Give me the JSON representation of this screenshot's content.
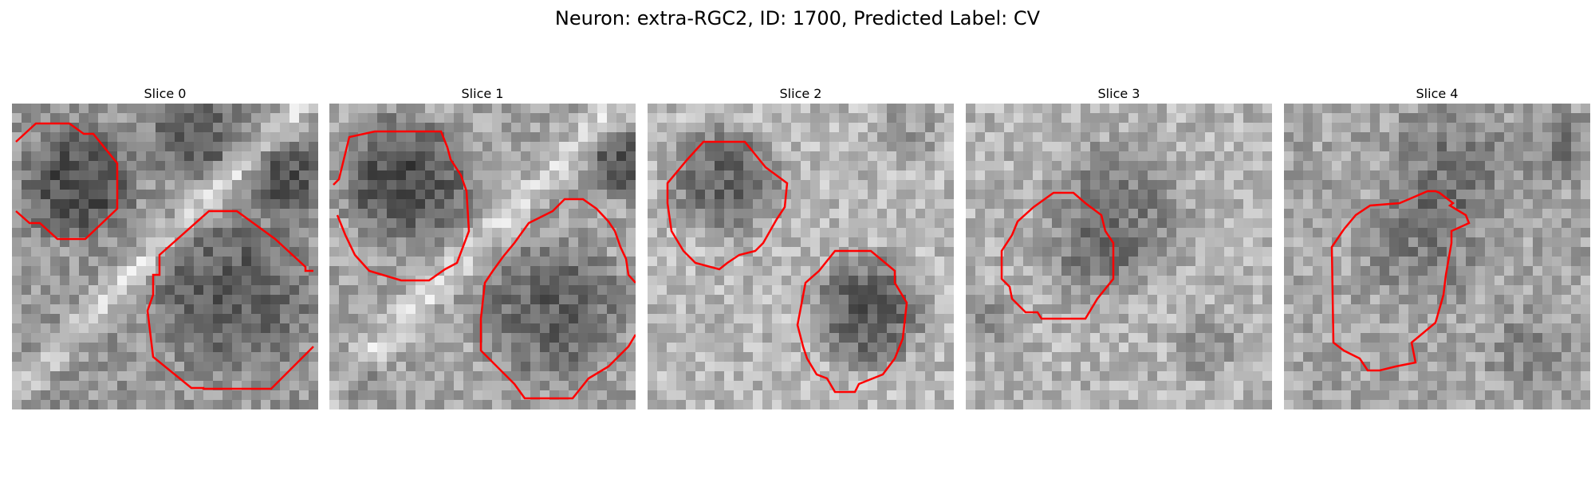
{
  "figure": {
    "title": "Neuron: extra-RGC2, ID: 1700, Predicted Label: CV",
    "contour_color": "#ff0000"
  },
  "slices": [
    {
      "title": "Slice 0",
      "seed": 11,
      "base": 150,
      "blobs": [
        [
          0.22,
          0.26,
          0.22,
          80
        ],
        [
          0.72,
          0.62,
          0.3,
          60
        ],
        [
          0.6,
          0.1,
          0.18,
          55
        ],
        [
          0.9,
          0.25,
          0.15,
          70
        ]
      ],
      "ridge": 70
    },
    {
      "title": "Slice 1",
      "seed": 29,
      "base": 165,
      "blobs": [
        [
          0.25,
          0.25,
          0.25,
          95
        ],
        [
          0.73,
          0.68,
          0.28,
          70
        ],
        [
          0.95,
          0.2,
          0.14,
          75
        ],
        [
          0.1,
          0.9,
          0.1,
          30
        ]
      ],
      "ridge": 60
    },
    {
      "title": "Slice 2",
      "seed": 47,
      "base": 185,
      "blobs": [
        [
          0.25,
          0.25,
          0.22,
          85
        ],
        [
          0.72,
          0.68,
          0.22,
          100
        ],
        [
          0.85,
          0.1,
          0.14,
          30
        ]
      ],
      "ridge": 0
    },
    {
      "title": "Slice 3",
      "seed": 63,
      "base": 180,
      "blobs": [
        [
          0.5,
          0.35,
          0.28,
          55
        ],
        [
          0.4,
          0.52,
          0.2,
          30
        ],
        [
          0.78,
          0.78,
          0.13,
          40
        ],
        [
          0.05,
          0.72,
          0.12,
          40
        ]
      ],
      "ridge": 0
    },
    {
      "title": "Slice 4",
      "seed": 81,
      "base": 165,
      "blobs": [
        [
          0.45,
          0.45,
          0.24,
          40
        ],
        [
          0.55,
          0.2,
          0.25,
          45
        ],
        [
          0.9,
          0.15,
          0.15,
          40
        ],
        [
          0.8,
          0.8,
          0.18,
          25
        ]
      ],
      "ridge": 0
    }
  ]
}
